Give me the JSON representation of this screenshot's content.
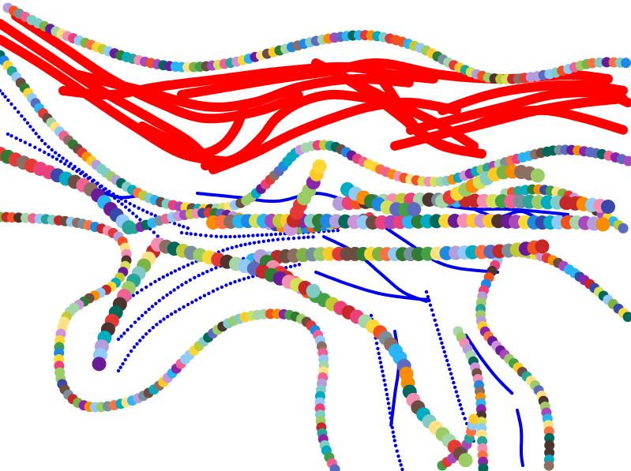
{
  "canvas": {
    "background": "#ffffff"
  },
  "palette": {
    "red": "#ff0000",
    "blue": "#0000ee",
    "bead_colors": [
      "#e53935",
      "#8e24aa",
      "#3949ab",
      "#1e88e5",
      "#00acc1",
      "#43a047",
      "#7cb342",
      "#c0ca33",
      "#fdd835",
      "#fb8c00",
      "#f4511e",
      "#6d4c41",
      "#ec407a",
      "#ab47bc",
      "#5c6bc0",
      "#29b6f6",
      "#26a69a",
      "#9ccc65",
      "#d4e157",
      "#ffca28",
      "#ff7043",
      "#8d6e63",
      "#78909c",
      "#b39ddb",
      "#80cbc4",
      "#a5d6a7",
      "#f48fb1",
      "#ce93d8",
      "#90caf9",
      "#ffe082",
      "#2e7d32",
      "#6a1b9a",
      "#c62828",
      "#00695c",
      "#4e342e",
      "#f06292"
    ]
  },
  "strokes": {
    "red_count": 16,
    "blue_dotted_count": 8,
    "blue_solid_count": 10,
    "bead_strand_count": 9,
    "thick_bead_strand_count": 5
  }
}
